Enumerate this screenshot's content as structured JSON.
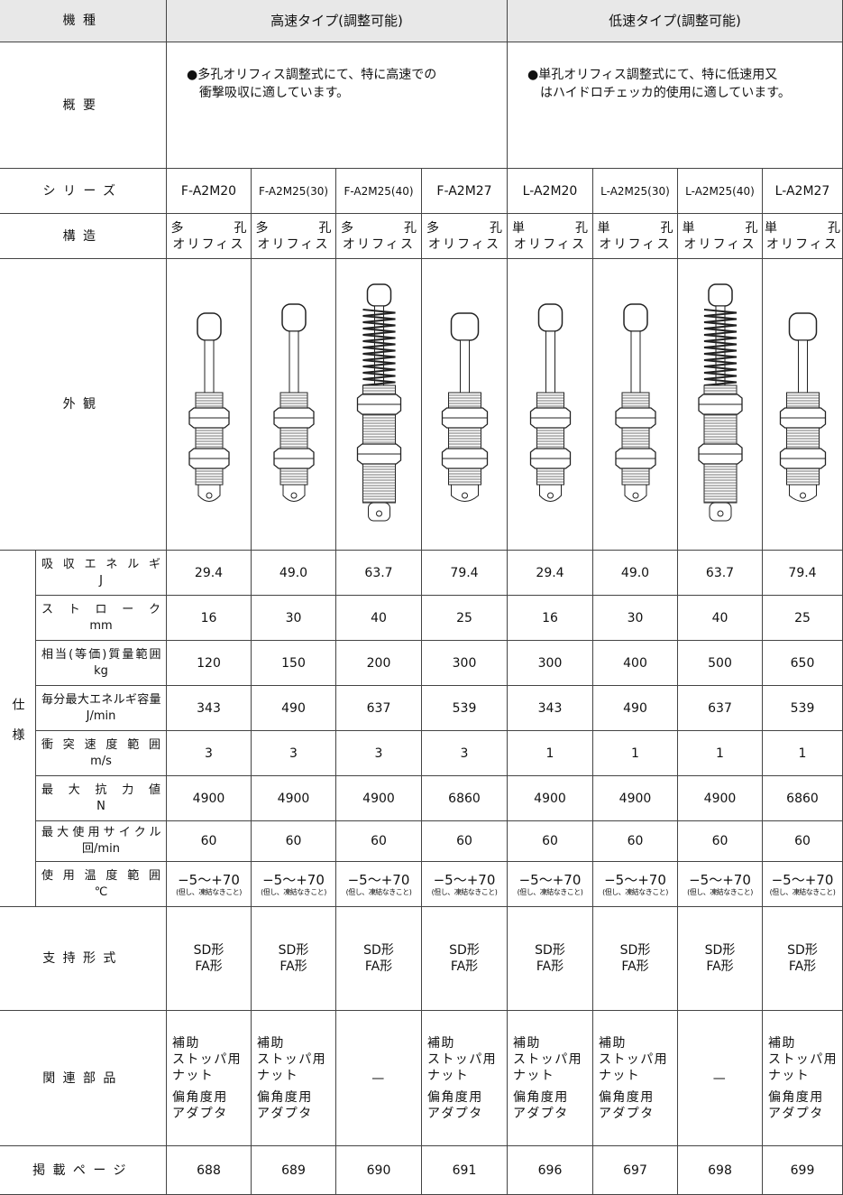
{
  "header": {
    "label": "機種",
    "groups": [
      "高速タイプ(調整可能)",
      "低速タイプ(調整可能)"
    ]
  },
  "overview": {
    "label": "概要",
    "texts": [
      [
        "●多孔オリフィス調整式にて、特に高速での",
        "衝撃吸収に適しています。"
      ],
      [
        "●単孔オリフィス調整式にて、特に低速用又",
        "はハイドロチェッカ的使用に適しています。"
      ]
    ]
  },
  "series": {
    "label": "シリーズ",
    "values": [
      "F-A2M20",
      "F-A2M25(30)",
      "F-A2M25(40)",
      "F-A2M27",
      "L-A2M20",
      "L-A2M25(30)",
      "L-A2M25(40)",
      "L-A2M27"
    ]
  },
  "structure": {
    "label": "構造",
    "values": [
      [
        "多孔",
        "オリフィス"
      ],
      [
        "多孔",
        "オリフィス"
      ],
      [
        "多孔",
        "オリフィス"
      ],
      [
        "多孔",
        "オリフィス"
      ],
      [
        "単孔",
        "オリフィス"
      ],
      [
        "単孔",
        "オリフィス"
      ],
      [
        "単孔",
        "オリフィス"
      ],
      [
        "単孔",
        "オリフィス"
      ]
    ]
  },
  "appearance": {
    "label": "外観"
  },
  "spec": {
    "label": "仕様",
    "rows": [
      {
        "name": "吸収エネルギ",
        "unit": "J",
        "values": [
          "29.4",
          "49.0",
          "63.7",
          "79.4",
          "29.4",
          "49.0",
          "63.7",
          "79.4"
        ]
      },
      {
        "name": "ストローク",
        "unit": "mm",
        "values": [
          "16",
          "30",
          "40",
          "25",
          "16",
          "30",
          "40",
          "25"
        ]
      },
      {
        "name": "相当(等価)質量範囲",
        "unit": "kg",
        "values": [
          "120",
          "150",
          "200",
          "300",
          "300",
          "400",
          "500",
          "650"
        ]
      },
      {
        "name": "毎分最大エネルギ容量",
        "unit": "J/min",
        "values": [
          "343",
          "490",
          "637",
          "539",
          "343",
          "490",
          "637",
          "539"
        ]
      },
      {
        "name": "衝突速度範囲",
        "unit": "m/s",
        "values": [
          "3",
          "3",
          "3",
          "3",
          "1",
          "1",
          "1",
          "1"
        ]
      },
      {
        "name": "最大抗力値",
        "unit": "N",
        "values": [
          "4900",
          "4900",
          "4900",
          "6860",
          "4900",
          "4900",
          "4900",
          "6860"
        ]
      },
      {
        "name": "最大使用サイクル",
        "unit": "回/min",
        "values": [
          "60",
          "60",
          "60",
          "60",
          "60",
          "60",
          "60",
          "60"
        ]
      },
      {
        "name": "使用温度範囲",
        "unit": "℃",
        "values": [
          "−5〜+70",
          "−5〜+70",
          "−5〜+70",
          "−5〜+70",
          "−5〜+70",
          "−5〜+70",
          "−5〜+70",
          "−5〜+70"
        ],
        "notes": [
          "(但し、凍結なきこと)",
          "(但し、凍結なきこと)",
          "(但し、凍結なきこと)",
          "(但し、凍結なきこと)",
          "(但し、凍結なきこと)",
          "(但し、凍結なきこと)",
          "(但し、凍結なきこと)",
          "(但し、凍結なきこと)"
        ]
      }
    ]
  },
  "mounting": {
    "label": "支持形式",
    "values": [
      [
        "SD形",
        "FA形"
      ],
      [
        "SD形",
        "FA形"
      ],
      [
        "SD形",
        "FA形"
      ],
      [
        "SD形",
        "FA形"
      ],
      [
        "SD形",
        "FA形"
      ],
      [
        "SD形",
        "FA形"
      ],
      [
        "SD形",
        "FA形"
      ],
      [
        "SD形",
        "FA形"
      ]
    ]
  },
  "parts": {
    "label": "関連部品",
    "values": [
      [
        "補助",
        "ストッパ用",
        "ナット",
        "偏角度用",
        "アダプタ"
      ],
      [
        "補助",
        "ストッパ用",
        "ナット",
        "偏角度用",
        "アダプタ"
      ],
      [
        "—"
      ],
      [
        "補助",
        "ストッパ用",
        "ナット",
        "偏角度用",
        "アダプタ"
      ],
      [
        "補助",
        "ストッパ用",
        "ナット",
        "偏角度用",
        "アダプタ"
      ],
      [
        "補助",
        "ストッパ用",
        "ナット",
        "偏角度用",
        "アダプタ"
      ],
      [
        "—"
      ],
      [
        "補助",
        "ストッパ用",
        "ナット",
        "偏角度用",
        "アダプタ"
      ]
    ]
  },
  "page": {
    "label": "掲載ページ",
    "values": [
      "688",
      "689",
      "690",
      "691",
      "696",
      "697",
      "698",
      "699"
    ]
  }
}
